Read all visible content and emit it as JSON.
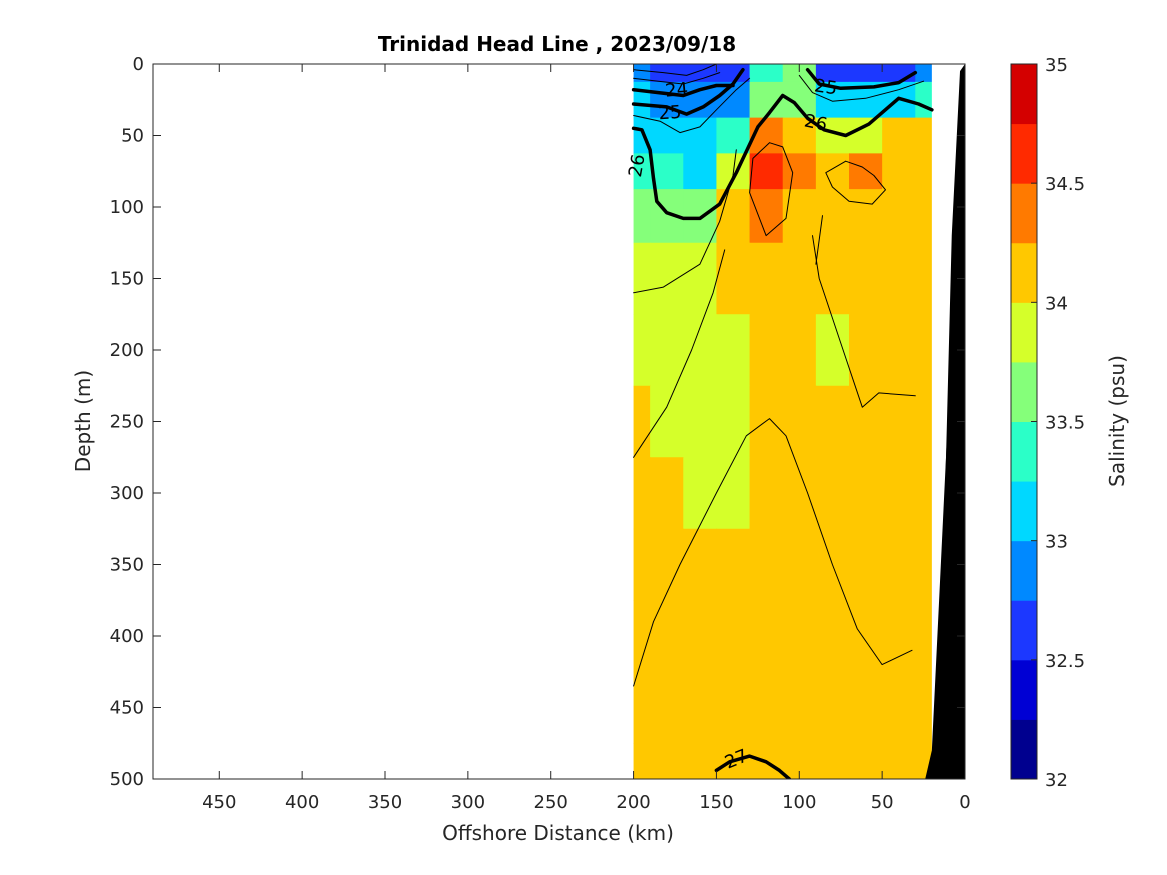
{
  "chart_data": {
    "type": "heatmap",
    "title": "Trinidad Head Line , 2023/09/18",
    "xlabel": "Offshore Distance (km)",
    "ylabel": "Depth (m)",
    "xlim": [
      490,
      0
    ],
    "ylim": [
      0,
      500
    ],
    "x_reversed": true,
    "y_reversed": true,
    "x_ticks": [
      450,
      400,
      350,
      300,
      250,
      200,
      150,
      100,
      50,
      0
    ],
    "y_ticks": [
      0,
      50,
      100,
      150,
      200,
      250,
      300,
      350,
      400,
      450,
      500
    ],
    "colorbar": {
      "label": "Salinity (psu)",
      "range": [
        32,
        35
      ],
      "ticks": [
        35,
        34.5,
        34,
        33.5,
        33,
        32.5,
        32
      ],
      "levels": [
        32,
        32.25,
        32.5,
        32.75,
        33,
        33.25,
        33.5,
        33.75,
        34,
        34.25,
        34.5,
        34.75,
        35
      ],
      "colors": [
        "#00008f",
        "#0000d4",
        "#1c38ff",
        "#0089ff",
        "#00d8ff",
        "#2bffc8",
        "#85ff7a",
        "#d5ff2a",
        "#ffc800",
        "#ff7a00",
        "#ff2a00",
        "#d40000"
      ]
    },
    "data_extent": {
      "x": [
        200,
        20
      ],
      "y": [
        0,
        500
      ]
    },
    "grid_x": [
      200,
      180,
      160,
      140,
      120,
      100,
      80,
      60,
      40,
      20
    ],
    "grid_y": [
      0,
      25,
      50,
      75,
      100,
      150,
      200,
      250,
      300,
      350,
      400,
      450,
      500
    ],
    "salinity": [
      [
        32.8,
        32.6,
        32.5,
        32.7,
        33.4,
        33.6,
        32.7,
        32.5,
        32.6,
        32.8
      ],
      [
        33.0,
        32.9,
        32.8,
        32.9,
        33.5,
        33.7,
        33.1,
        33.0,
        33.1,
        33.4
      ],
      [
        33.2,
        33.1,
        33.0,
        33.3,
        34.4,
        34.1,
        33.9,
        33.9,
        34.0,
        34.1
      ],
      [
        33.3,
        33.3,
        33.2,
        33.9,
        34.6,
        34.3,
        34.0,
        34.4,
        34.1,
        34.1
      ],
      [
        33.6,
        33.6,
        33.7,
        34.0,
        34.4,
        34.1,
        34.0,
        34.1,
        34.1,
        34.1
      ],
      [
        33.9,
        33.9,
        33.9,
        34.0,
        34.1,
        34.05,
        34.0,
        34.05,
        34.1,
        34.1
      ],
      [
        33.95,
        33.9,
        33.9,
        33.95,
        34.05,
        34.05,
        33.95,
        34.05,
        34.1,
        34.1
      ],
      [
        34.0,
        33.9,
        33.9,
        33.95,
        34.05,
        34.05,
        34.05,
        34.05,
        34.1,
        34.1
      ],
      [
        34.05,
        34.05,
        33.95,
        33.9,
        34.05,
        34.05,
        34.05,
        34.05,
        34.1,
        34.1
      ],
      [
        34.05,
        34.05,
        34.05,
        34.05,
        34.05,
        34.05,
        34.05,
        34.05,
        34.1,
        34.1
      ],
      [
        34.05,
        34.05,
        34.05,
        34.05,
        34.05,
        34.05,
        34.05,
        34.05,
        34.1,
        34.1
      ],
      [
        34.05,
        34.05,
        34.05,
        34.05,
        34.05,
        34.05,
        34.05,
        34.05,
        34.1,
        34.1
      ],
      [
        34.05,
        34.05,
        34.05,
        34.05,
        34.05,
        34.05,
        34.05,
        34.05,
        34.1,
        34.1
      ]
    ],
    "density_contours": {
      "labeled": [
        "24",
        "25",
        "25",
        "26",
        "26",
        "27"
      ],
      "thick_lines": [
        {
          "level": 24,
          "points": [
            [
              200,
              18
            ],
            [
              185,
              20
            ],
            [
              170,
              22
            ],
            [
              160,
              18
            ],
            [
              150,
              15
            ],
            [
              140,
              15
            ]
          ]
        },
        {
          "level": 25,
          "points": [
            [
              200,
              28
            ],
            [
              180,
              30
            ],
            [
              168,
              35
            ],
            [
              158,
              30
            ],
            [
              148,
              22
            ],
            [
              140,
              14
            ],
            [
              134,
              4
            ]
          ]
        },
        {
          "level": 25,
          "points": [
            [
              95,
              4
            ],
            [
              88,
              14
            ],
            [
              75,
              17
            ],
            [
              55,
              16
            ],
            [
              40,
              13
            ],
            [
              30,
              6
            ]
          ]
        },
        {
          "level": 26,
          "points": [
            [
              200,
              45
            ],
            [
              195,
              46
            ],
            [
              190,
              60
            ],
            [
              188,
              80
            ],
            [
              186,
              96
            ],
            [
              180,
              104
            ],
            [
              170,
              108
            ],
            [
              160,
              108
            ],
            [
              148,
              98
            ],
            [
              138,
              76
            ],
            [
              125,
              44
            ],
            [
              118,
              34
            ],
            [
              110,
              22
            ],
            [
              103,
              27
            ],
            [
              95,
              38
            ],
            [
              85,
              46
            ],
            [
              72,
              50
            ],
            [
              58,
              42
            ],
            [
              40,
              24
            ],
            [
              28,
              28
            ],
            [
              20,
              32
            ]
          ]
        },
        {
          "level": 27,
          "points": [
            [
              150,
              494
            ],
            [
              142,
              488
            ],
            [
              130,
              484
            ],
            [
              120,
              488
            ],
            [
              112,
              494
            ],
            [
              106,
              500
            ]
          ]
        }
      ],
      "thin_lines": [
        {
          "points": [
            [
              200,
              4
            ],
            [
              182,
              6
            ],
            [
              168,
              8
            ],
            [
              158,
              4
            ],
            [
              150,
              0
            ]
          ]
        },
        {
          "points": [
            [
              200,
              10
            ],
            [
              185,
              12
            ],
            [
              170,
              14
            ],
            [
              158,
              10
            ],
            [
              148,
              6
            ]
          ]
        },
        {
          "points": [
            [
              200,
              36
            ],
            [
              184,
              40
            ],
            [
              172,
              48
            ],
            [
              160,
              44
            ],
            [
              150,
              32
            ],
            [
              138,
              18
            ],
            [
              130,
              10
            ]
          ]
        },
        {
          "points": [
            [
              100,
              8
            ],
            [
              92,
              20
            ],
            [
              80,
              26
            ],
            [
              60,
              24
            ],
            [
              40,
              18
            ],
            [
              25,
              12
            ]
          ]
        },
        {
          "points": [
            [
              118,
              55
            ],
            [
              128,
              66
            ],
            [
              130,
              90
            ],
            [
              120,
              120
            ],
            [
              108,
              108
            ],
            [
              104,
              76
            ],
            [
              110,
              58
            ],
            [
              118,
              55
            ]
          ]
        },
        {
          "points": [
            [
              72,
              68
            ],
            [
              62,
              72
            ],
            [
              55,
              78
            ],
            [
              48,
              88
            ],
            [
              56,
              98
            ],
            [
              70,
              96
            ],
            [
              80,
              86
            ],
            [
              84,
              76
            ],
            [
              72,
              68
            ]
          ]
        },
        {
          "points": [
            [
              200,
              160
            ],
            [
              182,
              156
            ],
            [
              160,
              140
            ],
            [
              148,
              110
            ],
            [
              140,
              78
            ],
            [
              138,
              60
            ]
          ]
        },
        {
          "points": [
            [
              200,
              275
            ],
            [
              180,
              240
            ],
            [
              165,
              200
            ],
            [
              152,
              160
            ],
            [
              145,
              130
            ]
          ]
        },
        {
          "points": [
            [
              200,
              435
            ],
            [
              188,
              390
            ],
            [
              172,
              350
            ],
            [
              150,
              300
            ],
            [
              132,
              260
            ],
            [
              118,
              248
            ],
            [
              108,
              260
            ],
            [
              95,
              300
            ],
            [
              80,
              350
            ],
            [
              65,
              395
            ],
            [
              50,
              420
            ],
            [
              32,
              410
            ]
          ]
        },
        {
          "points": [
            [
              92,
              120
            ],
            [
              88,
              150
            ],
            [
              75,
              195
            ],
            [
              62,
              240
            ],
            [
              52,
              230
            ],
            [
              30,
              232
            ]
          ]
        },
        {
          "points": [
            [
              86,
              106
            ],
            [
              90,
              140
            ]
          ]
        }
      ]
    },
    "mask": {
      "left_blank_x": [
        490,
        200
      ],
      "right_white_x": [
        20,
        0
      ],
      "bathymetry_fill": "#000000"
    }
  }
}
